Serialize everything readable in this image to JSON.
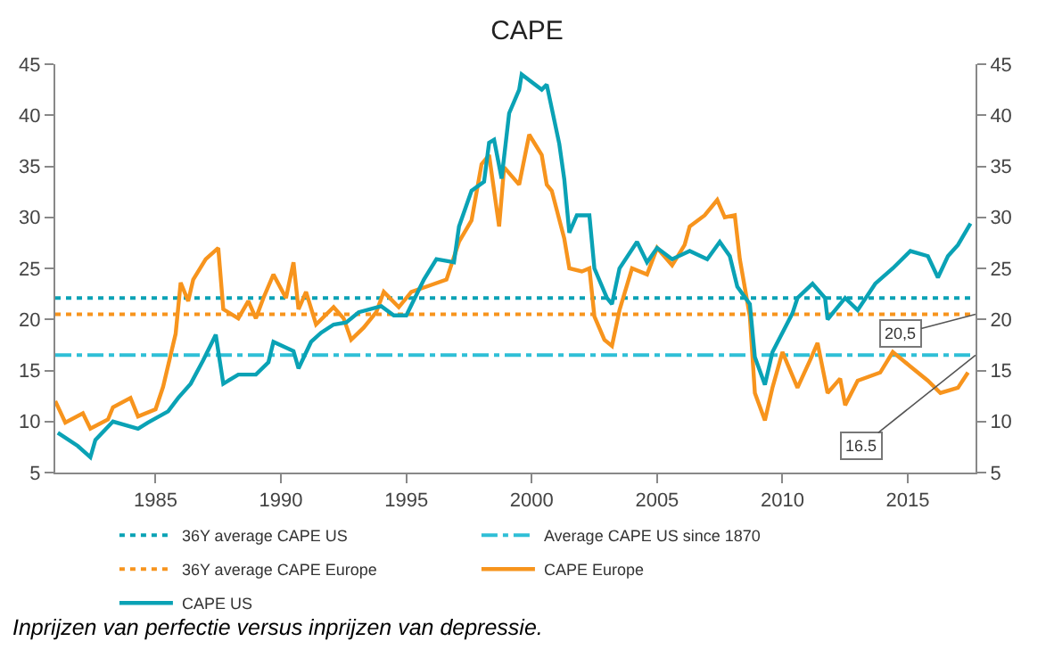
{
  "chart_data": {
    "type": "line",
    "title": "CAPE",
    "series": [
      {
        "name": "CAPE Europe",
        "color": "#f7941d",
        "x": [
          1981.0,
          1981.4,
          1982.1,
          1982.4,
          1983.1,
          1983.3,
          1984.0,
          1984.3,
          1985.0,
          1985.3,
          1985.8,
          1986.0,
          1986.3,
          1986.5,
          1987.0,
          1987.5,
          1987.7,
          1988.3,
          1988.7,
          1989.0,
          1989.3,
          1989.7,
          1990.2,
          1990.5,
          1990.7,
          1991.0,
          1991.4,
          1992.1,
          1992.5,
          1992.8,
          1993.3,
          1993.8,
          1994.1,
          1994.7,
          1995.2,
          1995.9,
          1996.6,
          1997.1,
          1997.6,
          1998.0,
          1998.3,
          1998.7,
          1998.9,
          1999.5,
          1999.9,
          2000.4,
          2000.6,
          2000.8,
          2001.3,
          2001.5,
          2002.0,
          2002.3,
          2002.5,
          2002.9,
          2003.2,
          2003.5,
          2004.0,
          2004.6,
          2005.0,
          2005.6,
          2006.1,
          2006.3,
          2006.9,
          2007.4,
          2007.7,
          2008.1,
          2008.3,
          2008.7,
          2008.9,
          2009.3,
          2009.6,
          2010.0,
          2010.6,
          2011.1,
          2011.4,
          2011.8,
          2012.3,
          2012.5,
          2013.0,
          2013.9,
          2014.4,
          2015.1,
          2015.8,
          2016.3,
          2017.0,
          2017.4
        ],
        "values": [
          12,
          9.9,
          10.8,
          9.3,
          10.2,
          11.4,
          12.3,
          10.5,
          11.2,
          13.4,
          18.6,
          23.6,
          21.8,
          23.9,
          25.9,
          27,
          21,
          20.1,
          21.8,
          20.1,
          22.1,
          24.4,
          22.1,
          25.6,
          21,
          22.7,
          19.5,
          21.2,
          20.1,
          18,
          19.2,
          20.7,
          22.7,
          21.2,
          22.7,
          23.3,
          23.9,
          27.6,
          29.7,
          35.2,
          36.1,
          29.1,
          34.9,
          33.2,
          38.1,
          36.1,
          33.2,
          32.6,
          27.9,
          25,
          24.7,
          25,
          20.3,
          18,
          17.4,
          20.9,
          25,
          24.4,
          27,
          25.3,
          27.3,
          29.1,
          30.2,
          31.7,
          30,
          30.2,
          25.9,
          20.3,
          12.8,
          10.1,
          13.3,
          16.8,
          13.3,
          16,
          17.7,
          12.8,
          14.2,
          11.6,
          14,
          14.8,
          16.8,
          15.4,
          14,
          12.8,
          13.3,
          14.8
        ]
      },
      {
        "name": "CAPE US",
        "color": "#0aa2b5",
        "x": [
          1981.1,
          1981.9,
          1982.4,
          1982.6,
          1983.3,
          1984.3,
          1984.7,
          1985.5,
          1985.9,
          1986.4,
          1986.9,
          1987.4,
          1987.7,
          1988.3,
          1989.0,
          1989.5,
          1989.7,
          1990.5,
          1990.7,
          1991.2,
          1991.6,
          1992.1,
          1992.6,
          1993.1,
          1994.0,
          1994.5,
          1995.0,
          1995.7,
          1996.2,
          1996.9,
          1997.1,
          1997.6,
          1998.1,
          1998.3,
          1998.5,
          1998.8,
          1999.1,
          1999.5,
          1999.6,
          2000.4,
          2000.6,
          2001.1,
          2001.3,
          2001.5,
          2001.8,
          2002.3,
          2002.5,
          2003.0,
          2003.2,
          2003.5,
          2004.2,
          2004.6,
          2005.0,
          2005.6,
          2006.3,
          2007.0,
          2007.5,
          2007.9,
          2008.2,
          2008.7,
          2008.9,
          2009.3,
          2009.6,
          2010.4,
          2010.6,
          2011.2,
          2011.7,
          2011.8,
          2012.5,
          2013.0,
          2013.7,
          2014.4,
          2015.1,
          2015.8,
          2016.2,
          2016.6,
          2017.0,
          2017.5
        ],
        "values": [
          8.9,
          7.6,
          6.5,
          8.2,
          10,
          9.3,
          9.9,
          11,
          12.3,
          13.7,
          16,
          18.5,
          13.7,
          14.6,
          14.6,
          15.8,
          17.8,
          16.9,
          15.2,
          17.8,
          18.7,
          19.5,
          19.7,
          20.7,
          21.3,
          20.4,
          20.4,
          23.9,
          25.9,
          25.6,
          29.1,
          32.6,
          33.5,
          37.3,
          37.6,
          33.8,
          40.2,
          42.5,
          44,
          42.5,
          43,
          37.2,
          33.7,
          28.5,
          30.2,
          30.2,
          25,
          22.1,
          21.5,
          25,
          27.6,
          25.6,
          27,
          25.9,
          26.7,
          25.9,
          27.6,
          26.2,
          23.2,
          21.5,
          16.3,
          13.6,
          16.8,
          20.6,
          22.1,
          23.5,
          22.1,
          20,
          22.1,
          20.9,
          23.5,
          25,
          26.7,
          26.2,
          24.1,
          26.2,
          27.3,
          29.4
        ]
      }
    ],
    "ref_lines": [
      {
        "axis": "y",
        "value": 22.1,
        "label": "36Y average CAPE US",
        "color": "#0aa2b5",
        "line_style": "dotted"
      },
      {
        "axis": "y",
        "value": 16.5,
        "label": "Average CAPE US since 1870",
        "color": "#2fbfd6",
        "line_style": "dashdot"
      },
      {
        "axis": "y",
        "value": 20.5,
        "label": "36Y average CAPE Europe",
        "color": "#f7941d",
        "line_style": "dotted"
      }
    ],
    "annotations": [
      {
        "text": "20,5",
        "x": 2017.7,
        "y": 20.5
      },
      {
        "text": "16.5",
        "x": 2017.7,
        "y": 16.5
      },
      "Inprijzen van perfectie versus inprijzen van depressie."
    ],
    "xlim": [
      1981.0,
      2017.7
    ],
    "xticks": [
      1985,
      1990,
      1995,
      2000,
      2005,
      2010,
      2015
    ],
    "ylim": [
      5,
      45
    ],
    "yticks": [
      5,
      10,
      15,
      20,
      25,
      30,
      35,
      40,
      45
    ],
    "y2lim": [
      5,
      45
    ],
    "y2ticks": [
      5,
      10,
      15,
      20,
      25,
      30,
      35,
      40,
      45
    ],
    "legend": "bottom left"
  }
}
